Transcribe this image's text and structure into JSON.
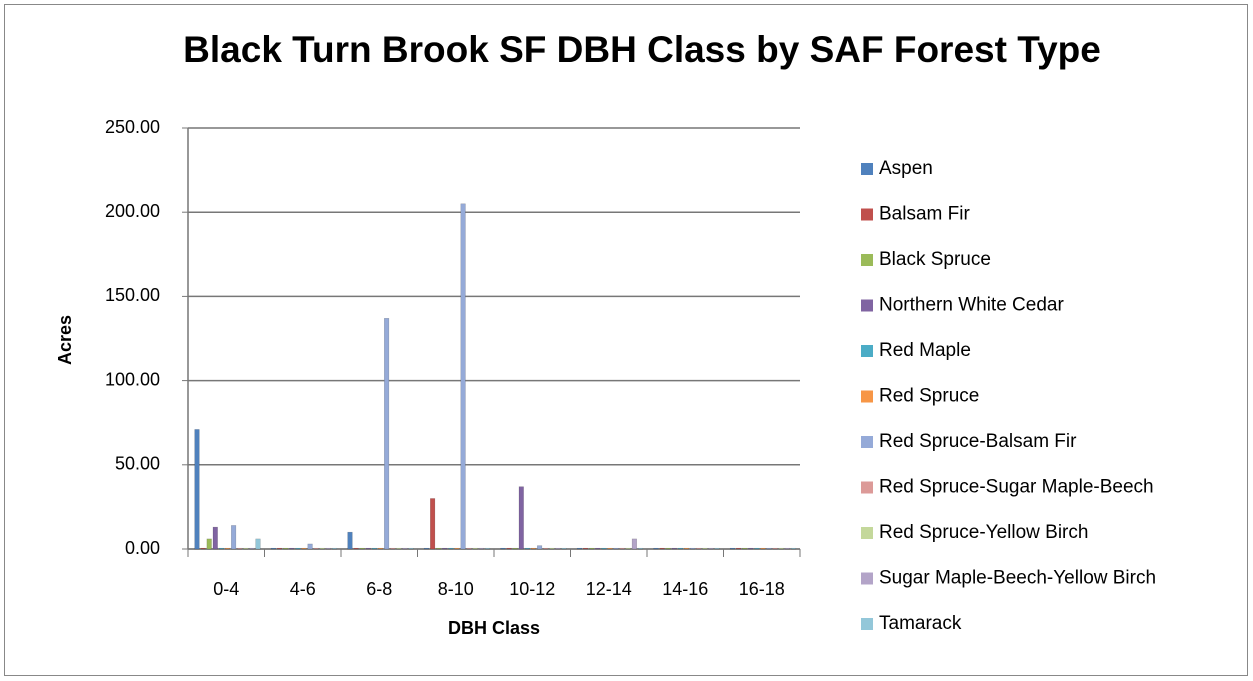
{
  "chart_data": {
    "type": "bar",
    "title": "Black Turn Brook SF DBH Class by SAF Forest Type",
    "x_label": "DBH Class",
    "y_label": "Acres",
    "categories": [
      "0-4",
      "4-6",
      "6-8",
      "8-10",
      "10-12",
      "12-14",
      "14-16",
      "16-18"
    ],
    "series": [
      {
        "name": "Aspen",
        "color": "#4f81bd",
        "values": [
          71,
          0,
          10,
          0,
          0,
          0,
          0,
          0
        ]
      },
      {
        "name": "Balsam Fir",
        "color": "#c0504d",
        "values": [
          0,
          0,
          0,
          30,
          0,
          0,
          0,
          0
        ]
      },
      {
        "name": "Black Spruce",
        "color": "#9bbb59",
        "values": [
          6,
          0,
          0,
          0,
          0,
          0,
          0,
          0
        ]
      },
      {
        "name": "Northern White Cedar",
        "color": "#8064a2",
        "values": [
          13,
          0,
          0,
          0,
          37,
          0,
          0,
          0
        ]
      },
      {
        "name": "Red Maple",
        "color": "#4bacc6",
        "values": [
          0,
          0,
          0,
          0,
          0,
          0,
          0,
          0
        ]
      },
      {
        "name": "Red Spruce",
        "color": "#f79646",
        "values": [
          0,
          0,
          0,
          0,
          0,
          0,
          0,
          0
        ]
      },
      {
        "name": "Red Spruce-Balsam Fir",
        "color": "#95aad8",
        "values": [
          14,
          3,
          137,
          205,
          2,
          0,
          0,
          0
        ]
      },
      {
        "name": "Red Spruce-Sugar Maple-Beech",
        "color": "#dc9a98",
        "values": [
          0,
          0,
          0,
          0,
          0,
          0,
          0,
          0
        ]
      },
      {
        "name": "Red Spruce-Yellow Birch",
        "color": "#c4d89b",
        "values": [
          0,
          0,
          0,
          0,
          0,
          0,
          0,
          0
        ]
      },
      {
        "name": "Sugar Maple-Beech-Yellow Birch",
        "color": "#b3a4c8",
        "values": [
          0,
          0,
          0,
          0,
          0,
          6,
          0,
          0
        ]
      },
      {
        "name": "Tamarack",
        "color": "#93c7d9",
        "values": [
          6,
          0,
          0,
          0,
          0,
          0,
          0,
          0
        ]
      }
    ],
    "ylim": [
      0,
      250
    ],
    "yticks": [
      {
        "value": 0,
        "label": "0.00"
      },
      {
        "value": 50,
        "label": "50.00"
      },
      {
        "value": 100,
        "label": "100.00"
      },
      {
        "value": 150,
        "label": "150.00"
      },
      {
        "value": 200,
        "label": "200.00"
      },
      {
        "value": 250,
        "label": "250.00"
      }
    ],
    "grid": true,
    "legend": "right"
  }
}
